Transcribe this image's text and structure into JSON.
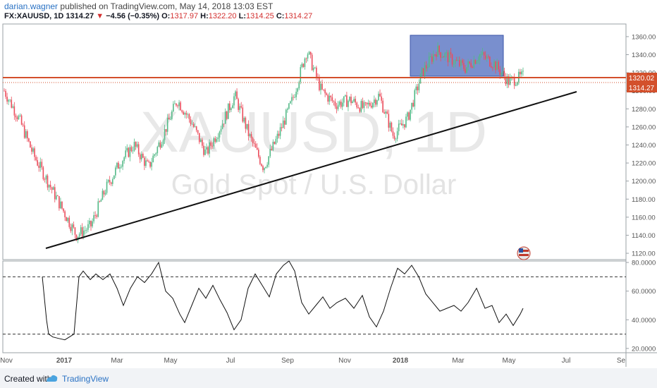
{
  "header": {
    "author": "darian.wagner",
    "published": "published on TradingView.com, May 14, 2018 13:03 EST",
    "symbol": "FX:XAUUSD, 1D",
    "last": "1314.27",
    "change": "−4.56 (−0.35%)",
    "o_label": "O:",
    "o_value": "1317.97",
    "h_label": "H:",
    "h_value": "1322.20",
    "l_label": "L:",
    "l_value": "1314.25",
    "c_label": "C:",
    "c_value": "1314.27"
  },
  "watermark": {
    "symbol": "XAUUSD, 1D",
    "name": "Gold Spot / U.S. Dollar"
  },
  "footer": {
    "created": "Created with",
    "brand": "TradingView"
  },
  "colors": {
    "hline": "#d3502c",
    "box_fill": "#5b76c3",
    "axis_text": "#555555",
    "price_tag": "#d3502c"
  },
  "chart_data": [
    {
      "type": "candlestick",
      "x_ticks": [
        "Nov",
        "2017",
        "Mar",
        "May",
        "Jul",
        "Sep",
        "Nov",
        "2018",
        "Mar",
        "May",
        "Jul",
        "Se"
      ],
      "y_ticks": [
        1120,
        1140,
        1160,
        1180,
        1200,
        1220,
        1240,
        1260,
        1280,
        1300,
        1320,
        1340,
        1360
      ],
      "ylim": [
        1113,
        1374
      ],
      "grid": false,
      "price_labels": [
        "1320.02",
        "1314.27"
      ],
      "horizontal_line": 1320.02,
      "last_close_line": 1314.27,
      "resistance_box": {
        "x_start": "Jan 2018",
        "x_end": "Apr 2018",
        "y_low": 1320,
        "y_high": 1368
      },
      "trendline": {
        "from": [
          "Dec 2016",
          1123
        ],
        "to": [
          "Jul 2018",
          1303
        ]
      },
      "close_path": [
        [
          "Nov",
          1300
        ],
        [
          "",
          1270
        ],
        [
          "",
          1230
        ],
        [
          "",
          1200
        ],
        [
          "",
          1170
        ],
        [
          "",
          1140
        ],
        [
          "2017",
          1150
        ],
        [
          "",
          1190
        ],
        [
          "",
          1220
        ],
        [
          "",
          1240
        ],
        [
          "Mar",
          1215
        ],
        [
          "",
          1250
        ],
        [
          "",
          1290
        ],
        [
          "",
          1265
        ],
        [
          "May",
          1230
        ],
        [
          "",
          1260
        ],
        [
          "",
          1295
        ],
        [
          "",
          1250
        ],
        [
          "Jul",
          1215
        ],
        [
          "",
          1250
        ],
        [
          "",
          1290
        ],
        [
          "Sep",
          1345
        ],
        [
          "",
          1300
        ],
        [
          "",
          1285
        ],
        [
          "",
          1290
        ],
        [
          "Nov",
          1280
        ],
        [
          "",
          1295
        ],
        [
          "",
          1250
        ],
        [
          "",
          1270
        ],
        [
          "2018",
          1320
        ],
        [
          "",
          1345
        ],
        [
          "",
          1335
        ],
        [
          "Mar",
          1325
        ],
        [
          "",
          1340
        ],
        [
          "",
          1330
        ],
        [
          "May",
          1310
        ],
        [
          "",
          1316
        ]
      ]
    },
    {
      "type": "line",
      "name": "",
      "y_ticks": [
        "80.0000",
        "60.0000",
        "40.0000",
        "20.0000"
      ],
      "y_tick_values": [
        80,
        60,
        40,
        20
      ],
      "ylim": [
        17,
        81
      ],
      "bands": [
        70,
        30
      ],
      "series": [
        [
          60,
          70
        ],
        [
          63,
          55
        ],
        [
          66,
          40
        ],
        [
          69,
          30
        ],
        [
          75,
          28
        ],
        [
          83,
          27
        ],
        [
          92,
          26
        ],
        [
          105,
          30
        ],
        [
          112,
          70
        ],
        [
          118,
          74
        ],
        [
          128,
          68
        ],
        [
          136,
          72
        ],
        [
          146,
          68
        ],
        [
          156,
          72
        ],
        [
          166,
          62
        ],
        [
          175,
          50
        ],
        [
          185,
          62
        ],
        [
          195,
          70
        ],
        [
          205,
          66
        ],
        [
          215,
          72
        ],
        [
          225,
          80
        ],
        [
          235,
          60
        ],
        [
          245,
          55
        ],
        [
          255,
          44
        ],
        [
          262,
          38
        ],
        [
          272,
          50
        ],
        [
          282,
          62
        ],
        [
          292,
          55
        ],
        [
          302,
          64
        ],
        [
          312,
          54
        ],
        [
          322,
          45
        ],
        [
          332,
          33
        ],
        [
          342,
          40
        ],
        [
          352,
          62
        ],
        [
          362,
          72
        ],
        [
          372,
          64
        ],
        [
          382,
          56
        ],
        [
          392,
          72
        ],
        [
          402,
          78
        ],
        [
          410,
          81
        ],
        [
          418,
          74
        ],
        [
          428,
          52
        ],
        [
          438,
          44
        ],
        [
          448,
          50
        ],
        [
          458,
          56
        ],
        [
          468,
          48
        ],
        [
          478,
          52
        ],
        [
          490,
          55
        ],
        [
          502,
          48
        ],
        [
          514,
          57
        ],
        [
          524,
          42
        ],
        [
          534,
          35
        ],
        [
          544,
          46
        ],
        [
          554,
          62
        ],
        [
          564,
          76
        ],
        [
          574,
          72
        ],
        [
          584,
          78
        ],
        [
          594,
          70
        ],
        [
          604,
          58
        ],
        [
          614,
          52
        ],
        [
          624,
          46
        ],
        [
          634,
          48
        ],
        [
          644,
          50
        ],
        [
          654,
          46
        ],
        [
          664,
          52
        ],
        [
          676,
          62
        ],
        [
          688,
          48
        ],
        [
          698,
          50
        ],
        [
          708,
          38
        ],
        [
          718,
          44
        ],
        [
          728,
          36
        ],
        [
          738,
          44
        ],
        [
          742,
          48
        ]
      ]
    }
  ]
}
